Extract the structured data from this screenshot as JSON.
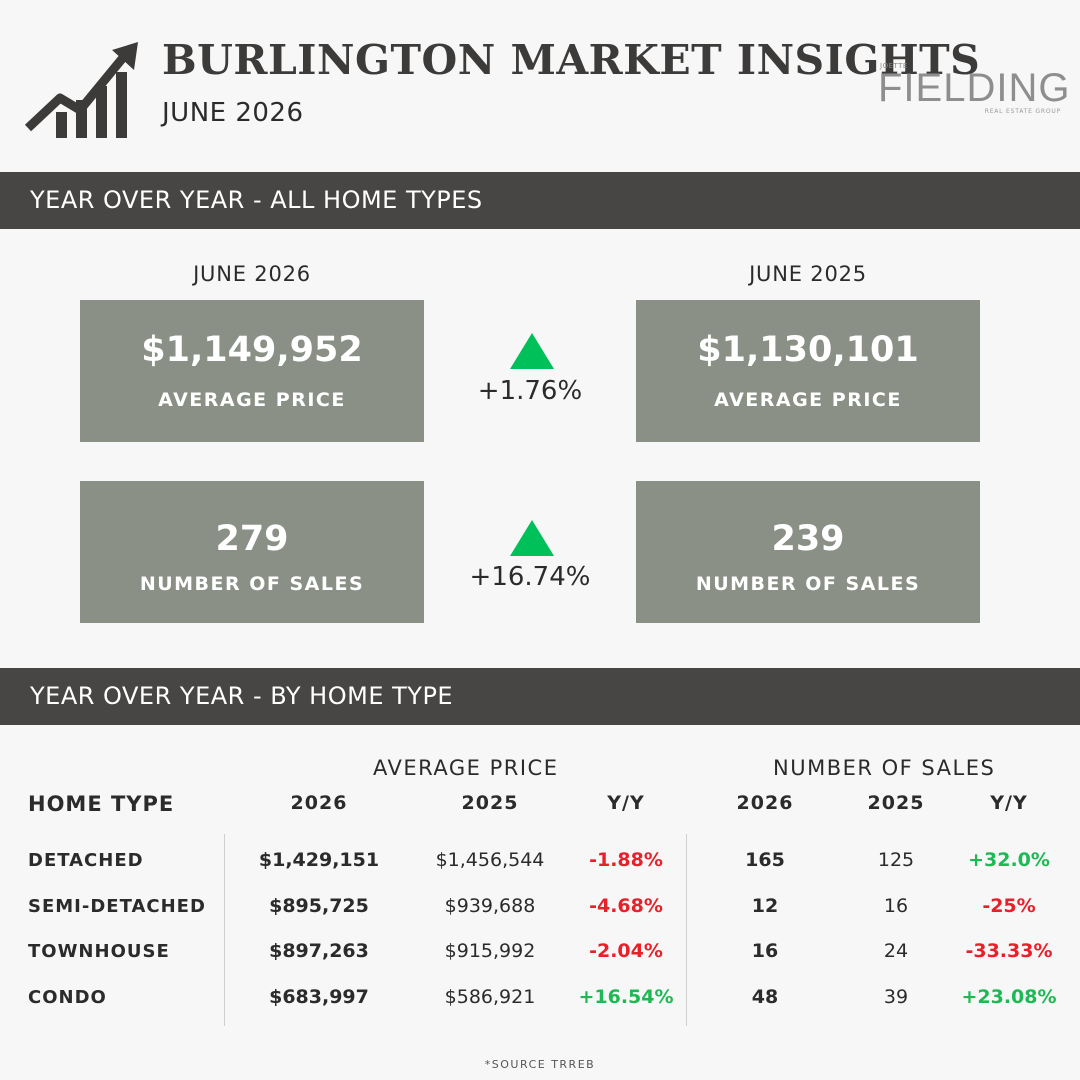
{
  "header": {
    "title": "BURLINGTON MARKET INSIGHTS",
    "subtitle": "JUNE 2026",
    "logo": {
      "small": "JOETTE",
      "big": "FIELDING",
      "tag": "REAL ESTATE GROUP"
    },
    "icon": "trending-chart-icon"
  },
  "section1": {
    "title": "YEAR OVER YEAR - ALL HOME TYPES",
    "left_heading": "JUNE 2026",
    "right_heading": "JUNE 2025",
    "price_now": "$1,149,952",
    "price_prev": "$1,130,101",
    "price_label": "AVERAGE PRICE",
    "price_change": "+1.76%",
    "sales_now": "279",
    "sales_prev": "239",
    "sales_label": "NUMBER OF SALES",
    "sales_change": "+16.74%",
    "up_color": "#00c05a"
  },
  "section2": {
    "title": "YEAR OVER YEAR - BY HOME TYPE",
    "group_price": "AVERAGE PRICE",
    "group_sales": "NUMBER OF SALES",
    "headers": {
      "type": "HOME TYPE",
      "y2026": "2026",
      "y2025": "2025",
      "yy": "Y/Y"
    },
    "rows": [
      {
        "type": "DETACHED",
        "p26": "$1,429,151",
        "p25": "$1,456,544",
        "pyy": "-1.88%",
        "s26": "165",
        "s25": "125",
        "syy": "+32.0%"
      },
      {
        "type": "SEMI-DETACHED",
        "p26": "$895,725",
        "p25": "$939,688",
        "pyy": "-4.68%",
        "s26": "12",
        "s25": "16",
        "syy": "-25%"
      },
      {
        "type": "TOWNHOUSE",
        "p26": "$897,263",
        "p25": "$915,992",
        "pyy": "-2.04%",
        "s26": "16",
        "s25": "24",
        "syy": "-33.33%"
      },
      {
        "type": "CONDO",
        "p26": "$683,997",
        "p25": "$586,921",
        "pyy": "+16.54%",
        "s26": "48",
        "s25": "39",
        "syy": "+23.08%"
      }
    ],
    "colors": {
      "negative": "#e8202a",
      "positive": "#1db954"
    }
  },
  "footer": {
    "source": "*SOURCE TRREB"
  }
}
